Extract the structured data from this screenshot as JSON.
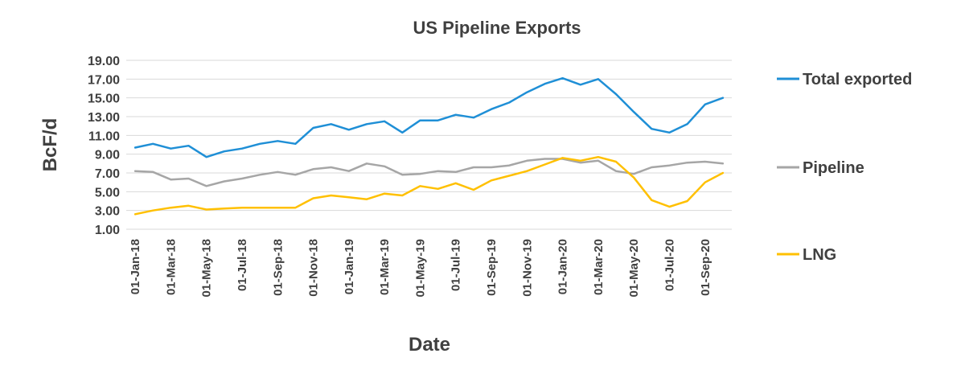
{
  "chart_data": {
    "type": "line",
    "title": "US Pipeline Exports",
    "xlabel": "Date",
    "ylabel": "BcF/d",
    "ylim": [
      1,
      19
    ],
    "yticks": [
      "1.00",
      "3.00",
      "5.00",
      "7.00",
      "9.00",
      "11.00",
      "13.00",
      "15.00",
      "17.00",
      "19.00"
    ],
    "x": [
      "01-Jan-18",
      "01-Feb-18",
      "01-Mar-18",
      "01-Apr-18",
      "01-May-18",
      "01-Jun-18",
      "01-Jul-18",
      "01-Aug-18",
      "01-Sep-18",
      "01-Oct-18",
      "01-Nov-18",
      "01-Dec-18",
      "01-Jan-19",
      "01-Feb-19",
      "01-Mar-19",
      "01-Apr-19",
      "01-May-19",
      "01-Jun-19",
      "01-Jul-19",
      "01-Aug-19",
      "01-Sep-19",
      "01-Oct-19",
      "01-Nov-19",
      "01-Dec-19",
      "01-Jan-20",
      "01-Feb-20",
      "01-Mar-20",
      "01-Apr-20",
      "01-May-20",
      "01-Jun-20",
      "01-Jul-20",
      "01-Aug-20",
      "01-Sep-20",
      "01-Oct-20"
    ],
    "xticks": [
      "01-Jan-18",
      "01-Mar-18",
      "01-May-18",
      "01-Jul-18",
      "01-Sep-18",
      "01-Nov-18",
      "01-Jan-19",
      "01-Mar-19",
      "01-May-19",
      "01-Jul-19",
      "01-Sep-19",
      "01-Nov-19",
      "01-Jan-20",
      "01-Mar-20",
      "01-May-20",
      "01-Jul-20",
      "01-Sep-20"
    ],
    "series": [
      {
        "name": "Total exported",
        "color": "#1f8fd6",
        "values": [
          9.7,
          10.1,
          9.6,
          9.9,
          8.7,
          9.3,
          9.6,
          10.1,
          10.4,
          10.1,
          11.8,
          12.2,
          11.6,
          12.2,
          12.5,
          11.3,
          12.6,
          12.6,
          13.2,
          12.9,
          13.8,
          14.5,
          15.6,
          16.5,
          17.1,
          16.4,
          17.0,
          15.4,
          13.5,
          11.7,
          11.3,
          12.2,
          14.3,
          15.0
        ]
      },
      {
        "name": "Pipeline",
        "color": "#a6a6a6",
        "values": [
          7.2,
          7.1,
          6.3,
          6.4,
          5.6,
          6.1,
          6.4,
          6.8,
          7.1,
          6.8,
          7.4,
          7.6,
          7.2,
          8.0,
          7.7,
          6.8,
          6.9,
          7.2,
          7.1,
          7.6,
          7.6,
          7.8,
          8.3,
          8.5,
          8.5,
          8.1,
          8.3,
          7.2,
          6.9,
          7.6,
          7.8,
          8.1,
          8.2,
          8.0
        ]
      },
      {
        "name": "LNG",
        "color": "#ffc000",
        "values": [
          2.6,
          3.0,
          3.3,
          3.5,
          3.1,
          3.2,
          3.3,
          3.3,
          3.3,
          3.3,
          4.3,
          4.6,
          4.4,
          4.2,
          4.8,
          4.6,
          5.6,
          5.3,
          5.9,
          5.2,
          6.2,
          6.7,
          7.2,
          7.9,
          8.6,
          8.3,
          8.7,
          8.2,
          6.5,
          4.1,
          3.4,
          4.0,
          6.0,
          7.0
        ]
      }
    ],
    "grid": true,
    "legend_position": "right"
  }
}
